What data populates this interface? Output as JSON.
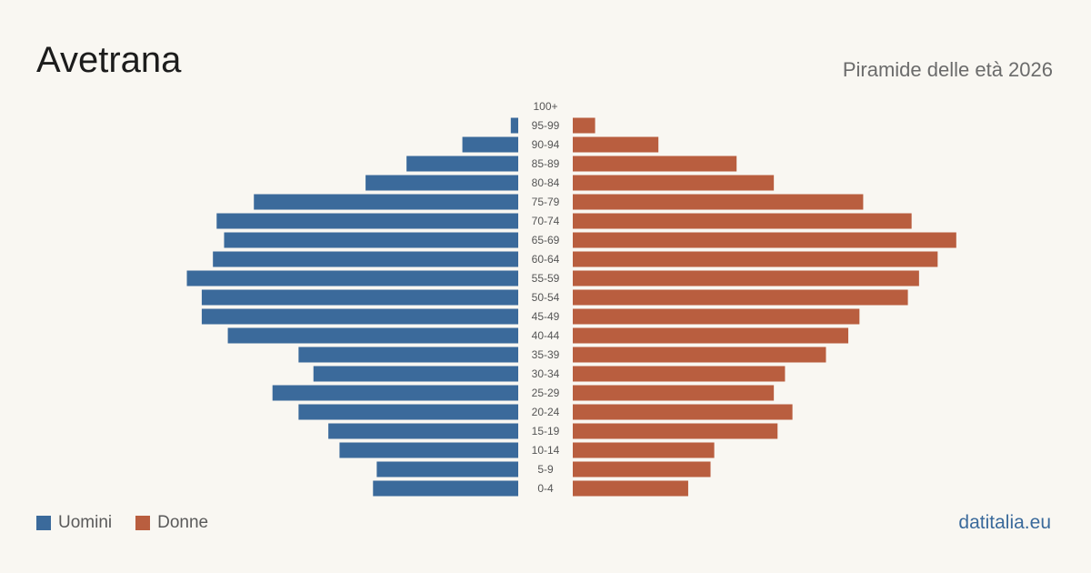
{
  "header": {
    "title": "Avetrana",
    "subtitle": "Piramide delle età 2026"
  },
  "legend": {
    "men_label": "Uomini",
    "women_label": "Donne"
  },
  "brand": "datitalia.eu",
  "colors": {
    "men": "#3b6a9b",
    "women": "#b95e3f",
    "background": "#f9f7f2"
  },
  "chart_data": {
    "type": "bar",
    "orientation": "horizontal-pyramid",
    "categories": [
      "100+",
      "95-99",
      "90-94",
      "85-89",
      "80-84",
      "75-79",
      "70-74",
      "65-69",
      "60-64",
      "55-59",
      "50-54",
      "45-49",
      "40-44",
      "35-39",
      "30-34",
      "25-29",
      "20-24",
      "15-19",
      "10-14",
      "5-9",
      "0-4"
    ],
    "series": [
      {
        "name": "Uomini",
        "values": [
          0,
          2,
          15,
          30,
          41,
          71,
          81,
          79,
          82,
          89,
          85,
          85,
          78,
          59,
          55,
          66,
          59,
          51,
          48,
          38,
          39
        ]
      },
      {
        "name": "Donne",
        "values": [
          0,
          6,
          23,
          44,
          54,
          78,
          91,
          103,
          98,
          93,
          90,
          77,
          74,
          68,
          57,
          54,
          59,
          55,
          38,
          37,
          31
        ]
      }
    ],
    "xlim": [
      0,
      105
    ],
    "grid": false,
    "legend_position": "bottom-left"
  }
}
